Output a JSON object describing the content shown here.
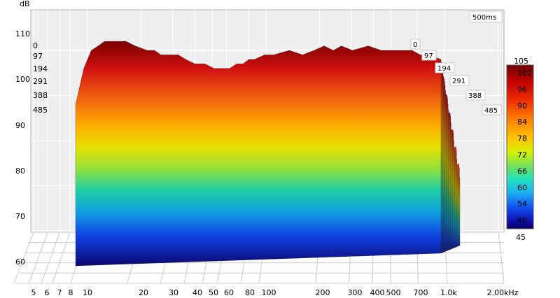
{
  "chart_data": {
    "type": "area",
    "subtype": "waterfall-3d",
    "ylabel": "dB",
    "ylim": [
      55,
      115
    ],
    "y_ticks": [
      "60",
      "70",
      "80",
      "90",
      "100",
      "110"
    ],
    "x_scale": "log",
    "xlim": [
      5,
      2000
    ],
    "x_ticks": [
      {
        "v": 5,
        "label": "5"
      },
      {
        "v": 6,
        "label": "6"
      },
      {
        "v": 7,
        "label": "7"
      },
      {
        "v": 8,
        "label": "8"
      },
      {
        "v": 10,
        "label": "10"
      },
      {
        "v": 20,
        "label": "20"
      },
      {
        "v": 30,
        "label": "30"
      },
      {
        "v": 40,
        "label": "40"
      },
      {
        "v": 50,
        "label": "50"
      },
      {
        "v": 60,
        "label": "60"
      },
      {
        "v": 80,
        "label": "80"
      },
      {
        "v": 100,
        "label": "100"
      },
      {
        "v": 200,
        "label": "200"
      },
      {
        "v": 300,
        "label": "300"
      },
      {
        "v": 400,
        "label": "400"
      },
      {
        "v": 500,
        "label": "500"
      },
      {
        "v": 700,
        "label": "700"
      },
      {
        "v": 1000,
        "label": "1.0k"
      },
      {
        "v": 2000,
        "label": "2.00kHz"
      }
    ],
    "time_unit": "ms",
    "time_labels": [
      "0",
      "97",
      "194",
      "291",
      "388",
      "485"
    ],
    "time_max_label": "500ms",
    "colorbar": {
      "max_label": "105",
      "min_label": "45",
      "ticks": [
        "102",
        "96",
        "90",
        "84",
        "78",
        "72",
        "66",
        "60",
        "54",
        "48"
      ],
      "range": [
        45,
        105
      ]
    },
    "front_slice": {
      "name": "0 ms",
      "x": [
        10,
        11,
        12,
        13,
        14,
        16,
        18,
        20,
        23,
        25,
        27,
        30,
        33,
        36,
        40,
        45,
        50,
        55,
        60,
        65,
        70,
        75,
        80,
        90,
        100,
        120,
        140,
        160,
        180,
        200,
        220,
        250,
        300,
        350,
        400,
        450,
        500,
        550,
        600,
        700
      ],
      "y": [
        88,
        96,
        100,
        101,
        102,
        102,
        102,
        101,
        100,
        100,
        99,
        99,
        99,
        98,
        97,
        97,
        96,
        96,
        96,
        97,
        97,
        98,
        98,
        99,
        99,
        100,
        99,
        100,
        101,
        100,
        101,
        100,
        101,
        100,
        100,
        100,
        100,
        99,
        99,
        98
      ]
    },
    "floor_db": 55,
    "grid": true
  }
}
